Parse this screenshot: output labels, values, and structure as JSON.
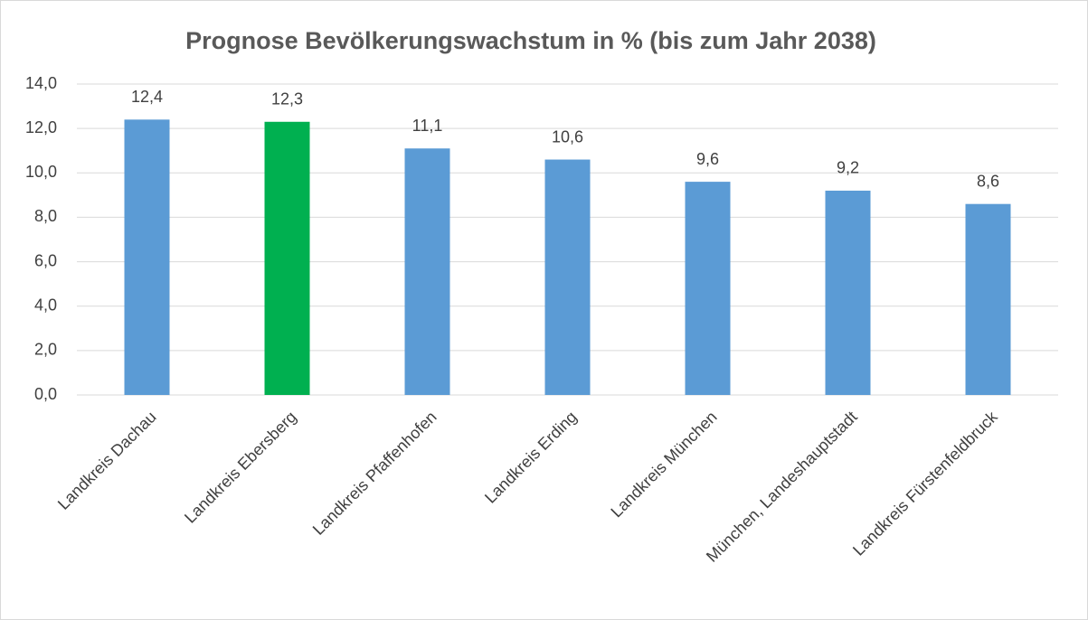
{
  "chart_data": {
    "type": "bar",
    "title": "Prognose Bevölkerungswachstum in % (bis zum Jahr 2038)",
    "categories": [
      "Landkreis Dachau",
      "Landkreis Ebersberg",
      "Landkreis Pfaffenhofen",
      "Landkreis Erding",
      "Landkreis München",
      "München, Landeshauptstadt",
      "Landkreis Fürstenfeldbruck"
    ],
    "values": [
      12.4,
      12.3,
      11.1,
      10.6,
      9.6,
      9.2,
      8.6
    ],
    "value_labels": [
      "12,4",
      "12,3",
      "11,1",
      "10,6",
      "9,6",
      "9,2",
      "8,6"
    ],
    "colors": [
      "#5b9bd5",
      "#00b050",
      "#5b9bd5",
      "#5b9bd5",
      "#5b9bd5",
      "#5b9bd5",
      "#5b9bd5"
    ],
    "ylim": [
      0,
      14
    ],
    "yticks": [
      {
        "value": 0,
        "label": "0,0"
      },
      {
        "value": 2,
        "label": "2,0"
      },
      {
        "value": 4,
        "label": "4,0"
      },
      {
        "value": 6,
        "label": "6,0"
      },
      {
        "value": 8,
        "label": "8,0"
      },
      {
        "value": 10,
        "label": "10,0"
      },
      {
        "value": 12,
        "label": "12,0"
      },
      {
        "value": 14,
        "label": "14,0"
      }
    ],
    "grid": true
  }
}
